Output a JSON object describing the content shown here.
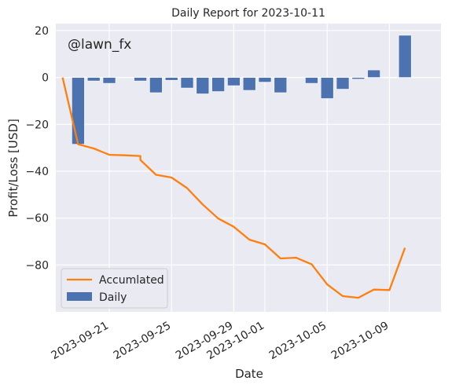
{
  "chart_data": {
    "type": "bar",
    "title": "Daily Report for 2023-10-11",
    "xlabel": "Date",
    "ylabel": "Profit/Loss [USD]",
    "watermark": "@lawn_fx",
    "ylim": [
      -100,
      23
    ],
    "y_ticks": [
      20,
      0,
      -20,
      -40,
      -60,
      -80
    ],
    "y_tick_labels": [
      "20",
      "0",
      "−20",
      "−40",
      "−60",
      "−80"
    ],
    "x_tick_labels": [
      "2023-09-21",
      "2023-09-25",
      "2023-09-29",
      "2023-10-01",
      "2023-10-05",
      "2023-10-09"
    ],
    "legend_position": "lower-left",
    "grid": true,
    "series": [
      {
        "name": "Daily",
        "kind": "bar",
        "color": "#4c72b0",
        "points": [
          {
            "date": "2023-09-19",
            "value": -28.5
          },
          {
            "date": "2023-09-20",
            "value": -1.5
          },
          {
            "date": "2023-09-21",
            "value": -2.5
          },
          {
            "date": "2023-09-23",
            "value": -1.5
          },
          {
            "date": "2023-09-24",
            "value": -6.5
          },
          {
            "date": "2023-09-25",
            "value": -1.2
          },
          {
            "date": "2023-09-26",
            "value": -4.5
          },
          {
            "date": "2023-09-27",
            "value": -7.0
          },
          {
            "date": "2023-09-28",
            "value": -6.0
          },
          {
            "date": "2023-09-29",
            "value": -3.5
          },
          {
            "date": "2023-09-30",
            "value": -5.5
          },
          {
            "date": "2023-10-01",
            "value": -2.0
          },
          {
            "date": "2023-10-02",
            "value": -6.5
          },
          {
            "date": "2023-10-04",
            "value": -2.5
          },
          {
            "date": "2023-10-05",
            "value": -9.0
          },
          {
            "date": "2023-10-06",
            "value": -5.0
          },
          {
            "date": "2023-10-07",
            "value": -0.7
          },
          {
            "date": "2023-10-08",
            "value": 3.2
          },
          {
            "date": "2023-10-09",
            "value": -0.2
          },
          {
            "date": "2023-10-10",
            "value": 18.0
          }
        ]
      },
      {
        "name": "Accumlated",
        "kind": "line",
        "color": "#ff7f0e",
        "points": [
          {
            "date": "2023-09-18",
            "value": 0
          },
          {
            "date": "2023-09-19",
            "value": -28.5
          },
          {
            "date": "2023-09-20",
            "value": -30.3
          },
          {
            "date": "2023-09-21",
            "value": -33.0
          },
          {
            "date": "2023-09-22",
            "value": -33.2
          },
          {
            "date": "2023-09-23",
            "value": -33.5
          },
          {
            "date": "2023-09-23",
            "value": -35.2
          },
          {
            "date": "2023-09-24",
            "value": -41.5
          },
          {
            "date": "2023-09-25",
            "value": -42.7
          },
          {
            "date": "2023-09-26",
            "value": -47.2
          },
          {
            "date": "2023-09-27",
            "value": -54.2
          },
          {
            "date": "2023-09-28",
            "value": -60.2
          },
          {
            "date": "2023-09-29",
            "value": -63.7
          },
          {
            "date": "2023-09-30",
            "value": -69.2
          },
          {
            "date": "2023-10-01",
            "value": -71.2
          },
          {
            "date": "2023-10-02",
            "value": -77.2
          },
          {
            "date": "2023-10-03",
            "value": -76.9
          },
          {
            "date": "2023-10-04",
            "value": -79.7
          },
          {
            "date": "2023-10-05",
            "value": -88.3
          },
          {
            "date": "2023-10-06",
            "value": -93.3
          },
          {
            "date": "2023-10-07",
            "value": -94.0
          },
          {
            "date": "2023-10-08",
            "value": -90.5
          },
          {
            "date": "2023-10-09",
            "value": -90.7
          },
          {
            "date": "2023-10-10",
            "value": -72.7
          }
        ]
      }
    ]
  }
}
